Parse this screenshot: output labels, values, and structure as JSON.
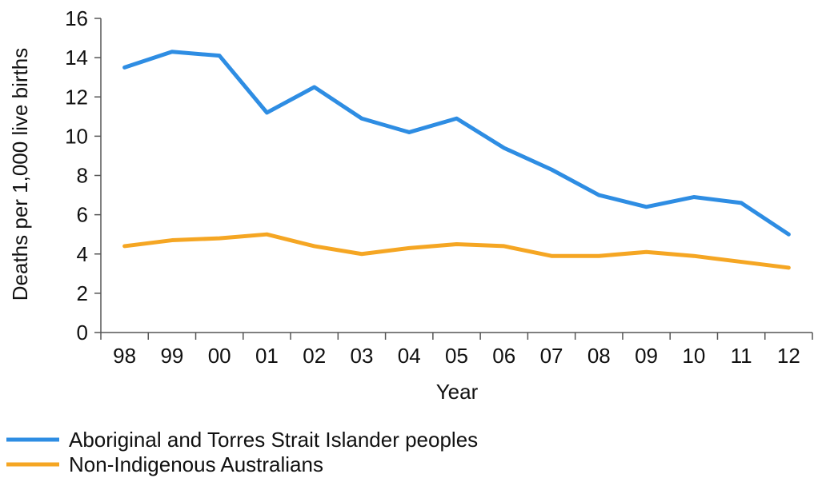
{
  "chart_data": {
    "type": "line",
    "categories": [
      "98",
      "99",
      "00",
      "01",
      "02",
      "03",
      "04",
      "05",
      "06",
      "07",
      "08",
      "09",
      "10",
      "11",
      "12"
    ],
    "series": [
      {
        "name": "Aboriginal and Torres Strait Islander peoples",
        "color": "#2e8de3",
        "values": [
          13.5,
          14.3,
          14.1,
          11.2,
          12.5,
          10.9,
          10.2,
          10.9,
          9.4,
          8.3,
          7.0,
          6.4,
          6.9,
          6.6,
          5.0
        ]
      },
      {
        "name": "Non-Indigenous Australians",
        "color": "#f5a623",
        "values": [
          4.4,
          4.7,
          4.8,
          5.0,
          4.4,
          4.0,
          4.3,
          4.5,
          4.4,
          3.9,
          3.9,
          4.1,
          3.9,
          3.6,
          3.3
        ]
      }
    ],
    "title": "",
    "xlabel": "Year",
    "ylabel": "Deaths per 1,000 live births",
    "ylim": [
      0,
      16
    ],
    "yticks": [
      "0",
      "2",
      "4",
      "6",
      "8",
      "10",
      "12",
      "14",
      "16"
    ],
    "grid": false,
    "legend": "bottom-left"
  }
}
